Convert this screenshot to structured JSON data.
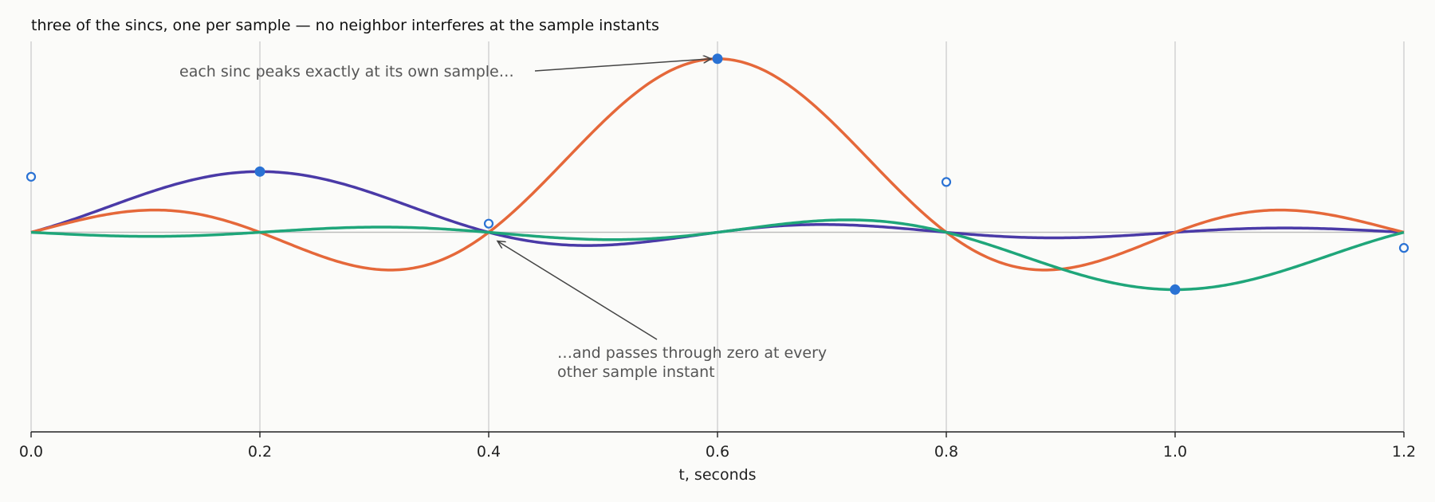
{
  "chart_data": {
    "type": "line",
    "title": "three of the sincs, one per sample — no neighbor interferes at the sample instants",
    "xlabel": "t, seconds",
    "ylabel": "",
    "xlim": [
      0,
      1.2
    ],
    "ylim": [
      -1.15,
      1.1
    ],
    "x_ticks": [
      "0.0",
      "0.2",
      "0.4",
      "0.6",
      "0.8",
      "1.0",
      "1.2"
    ],
    "grid": "vertical lines at sample instants",
    "sample_period": 0.2,
    "samples": [
      {
        "t": 0.0,
        "y": 0.32,
        "filled": false
      },
      {
        "t": 0.2,
        "y": 0.35,
        "filled": true
      },
      {
        "t": 0.4,
        "y": 0.05,
        "filled": false
      },
      {
        "t": 0.6,
        "y": 1.0,
        "filled": true
      },
      {
        "t": 0.8,
        "y": 0.29,
        "filled": false
      },
      {
        "t": 1.0,
        "y": -0.33,
        "filled": true
      },
      {
        "t": 1.2,
        "y": -0.09,
        "filled": false
      }
    ],
    "series": [
      {
        "center": 0.2,
        "amplitude": 0.35,
        "color": "#4a3aa7"
      },
      {
        "center": 0.6,
        "amplitude": 1.0,
        "color": "#e5683a"
      },
      {
        "center": 1.0,
        "amplitude": -0.33,
        "color": "#1fa67a"
      }
    ],
    "annotations": [
      {
        "text": "each sinc peaks exactly at its own sample…",
        "target_t": 0.6,
        "target_y": 1.0
      },
      {
        "lines": [
          "…and passes through zero at every",
          "other sample instant"
        ],
        "target_t": 0.4,
        "target_y": 0.0
      }
    ]
  },
  "colors": {
    "background": "#fbfbf9",
    "sample_marker": "#2a72d4",
    "grid": "#c8c8c8",
    "zero_line": "#bdbdbd",
    "axis": "#222222",
    "annotation": "#555555"
  }
}
